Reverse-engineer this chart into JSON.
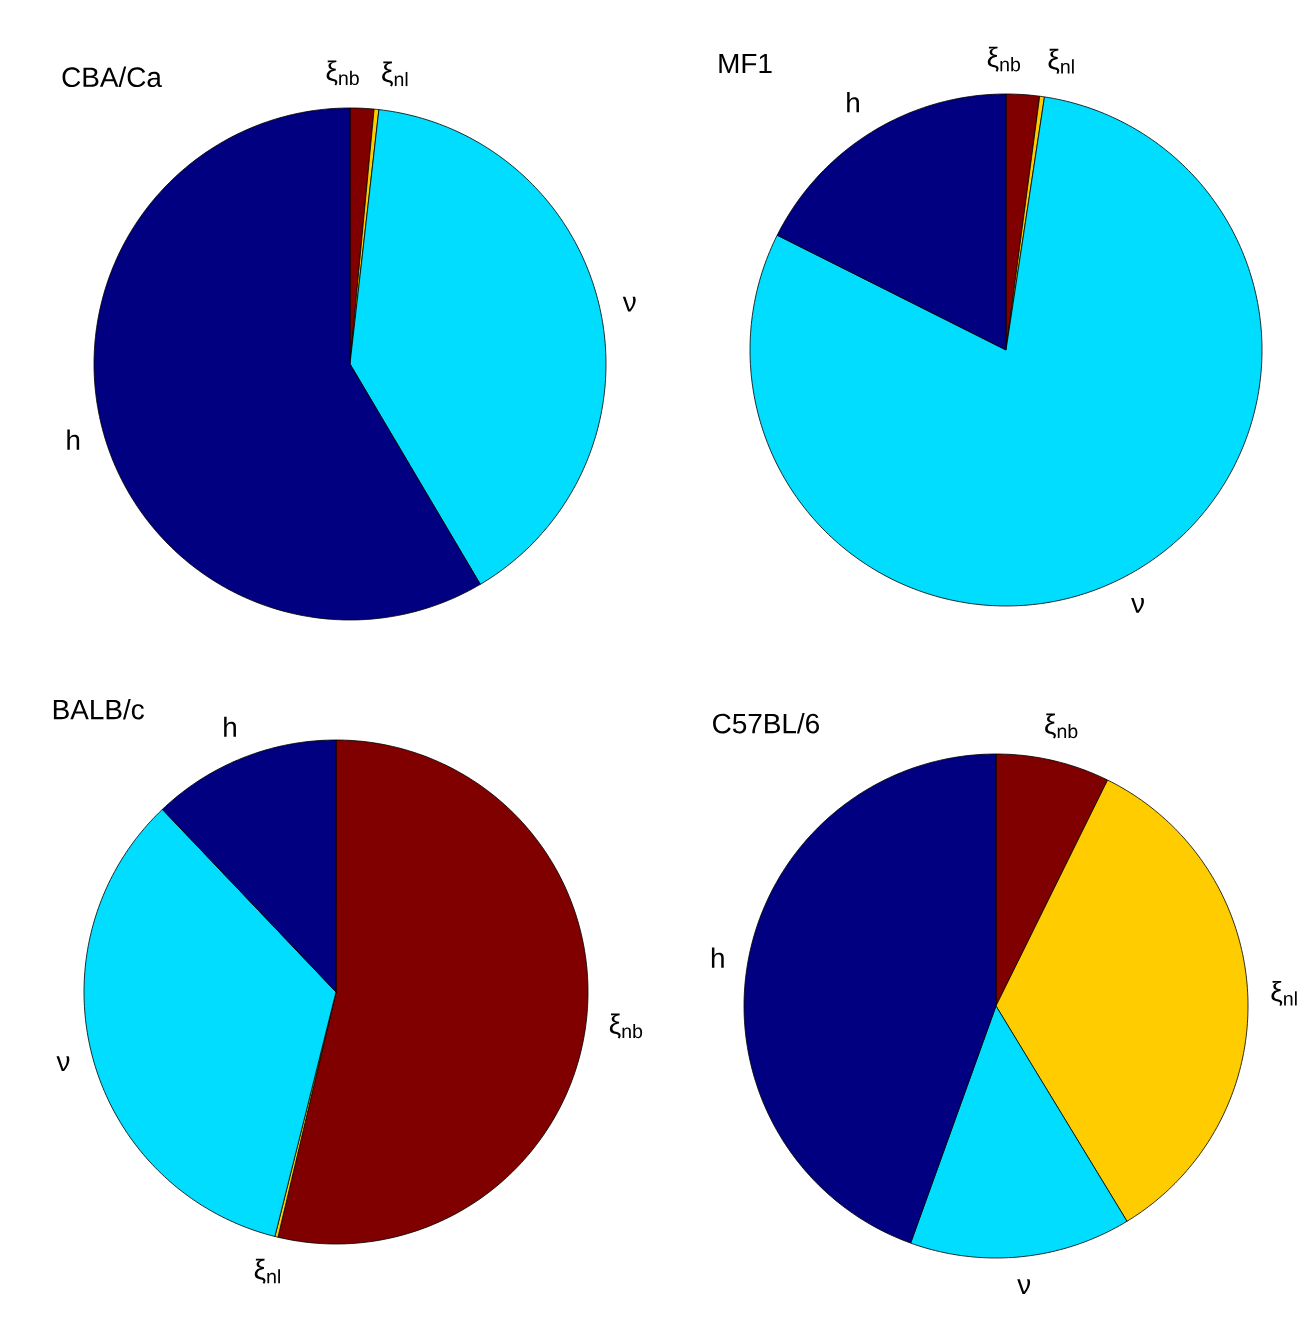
{
  "chart_data": [
    {
      "type": "pie",
      "title": "CBA/Ca",
      "categories": [
        "ξ$_{nb}$",
        "ξ$_{nl}$",
        "ν",
        "h"
      ],
      "values": [
        1.5,
        0.3,
        39.7,
        58.5
      ],
      "colors": [
        "#800000",
        "#ffcc00",
        "#00ddff",
        "#000080"
      ]
    },
    {
      "type": "pie",
      "title": "MF1",
      "categories": [
        "ξ$_{nb}$",
        "ξ$_{nl}$",
        "ν",
        "h"
      ],
      "values": [
        2.1,
        0.3,
        80.0,
        17.6
      ],
      "colors": [
        "#800000",
        "#ffcc00",
        "#00ddff",
        "#000080"
      ]
    },
    {
      "type": "pie",
      "title": "BALB/c",
      "categories": [
        "ξ$_{nb}$",
        "ξ$_{nl}$",
        "ν",
        "h"
      ],
      "values": [
        53.7,
        0.2,
        34.0,
        12.1
      ],
      "colors": [
        "#800000",
        "#ffcc00",
        "#00ddff",
        "#000080"
      ]
    },
    {
      "type": "pie",
      "title": "C57BL/6",
      "categories": [
        "ξ$_{nb}$",
        "ξ$_{nl}$",
        "ν",
        "h"
      ],
      "values": [
        7.3,
        34.0,
        14.2,
        44.5
      ],
      "colors": [
        "#800000",
        "#ffcc00",
        "#00ddff",
        "#000080"
      ]
    }
  ]
}
